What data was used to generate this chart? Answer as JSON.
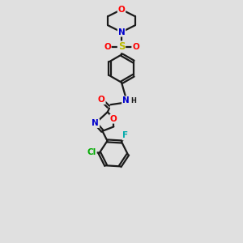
{
  "bg_color": "#e0e0e0",
  "bond_color": "#1a1a1a",
  "bond_width": 1.6,
  "atom_colors": {
    "O": "#ff0000",
    "N": "#0000cc",
    "S": "#bbbb00",
    "F": "#00aaaa",
    "Cl": "#00aa00",
    "C": "#1a1a1a",
    "H": "#1a1a1a"
  },
  "font_size": 7.5
}
